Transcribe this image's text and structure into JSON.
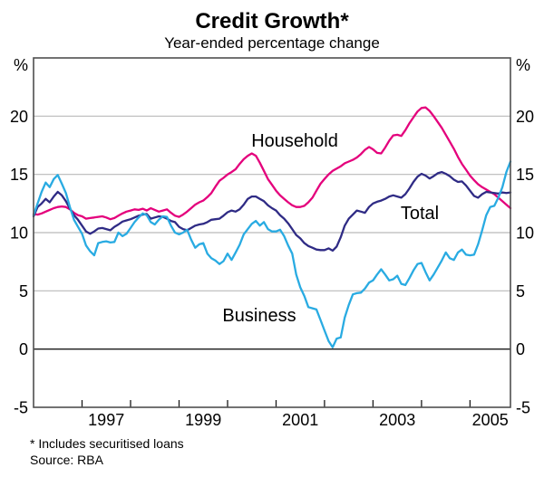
{
  "header": {
    "title": "Credit Growth*",
    "subtitle": "Year-ended percentage change"
  },
  "axes": {
    "unit_left": "%",
    "unit_right": "%"
  },
  "footnotes": {
    "note": "* Includes securitised loans",
    "source": "Source: RBA"
  },
  "chart_data": {
    "type": "line",
    "title": "Credit Growth*",
    "subtitle": "Year-ended percentage change",
    "ylabel": "%",
    "ylim": [
      -5,
      25
    ],
    "yticks": [
      20,
      15,
      10,
      5,
      0,
      -5
    ],
    "gridlines": [
      20,
      15,
      10,
      5
    ],
    "zero_line": 0,
    "grid": "horizontal-only",
    "legend_position": "inline-labels",
    "x_start": "1996-01",
    "x_end": "2005-11",
    "frequency": "monthly",
    "xticks_years": [
      1997,
      1998,
      1999,
      2000,
      2001,
      2002,
      2003,
      2004,
      2005
    ],
    "xtick_labels": [
      1997,
      1999,
      2001,
      2003,
      2005
    ],
    "series": [
      {
        "name": "Household",
        "color": "#e4007c",
        "values": [
          11.6,
          11.55,
          11.65,
          11.8,
          11.95,
          12.1,
          12.2,
          12.25,
          12.2,
          12.0,
          11.7,
          11.5,
          11.4,
          11.2,
          11.25,
          11.3,
          11.35,
          11.4,
          11.3,
          11.15,
          11.25,
          11.45,
          11.65,
          11.8,
          11.9,
          12.0,
          11.95,
          12.05,
          11.9,
          12.1,
          11.95,
          11.8,
          11.9,
          12.0,
          11.7,
          11.45,
          11.35,
          11.55,
          11.8,
          12.1,
          12.4,
          12.6,
          12.75,
          13.05,
          13.4,
          13.95,
          14.45,
          14.7,
          15.0,
          15.2,
          15.45,
          15.9,
          16.3,
          16.6,
          16.8,
          16.6,
          16.0,
          15.3,
          14.6,
          14.1,
          13.6,
          13.2,
          12.9,
          12.6,
          12.35,
          12.2,
          12.2,
          12.3,
          12.6,
          13.0,
          13.6,
          14.2,
          14.6,
          15.0,
          15.3,
          15.5,
          15.7,
          15.95,
          16.1,
          16.25,
          16.45,
          16.75,
          17.1,
          17.35,
          17.15,
          16.85,
          16.8,
          17.3,
          17.9,
          18.35,
          18.4,
          18.3,
          18.8,
          19.4,
          19.9,
          20.4,
          20.7,
          20.75,
          20.45,
          20.0,
          19.5,
          19.0,
          18.4,
          17.8,
          17.2,
          16.5,
          15.9,
          15.4,
          14.9,
          14.5,
          14.15,
          13.9,
          13.7,
          13.5,
          13.3,
          13.0,
          12.7,
          12.4,
          12.1
        ]
      },
      {
        "name": "Total",
        "color": "#2f2b85",
        "values": [
          11.4,
          12.2,
          12.5,
          12.9,
          12.6,
          13.1,
          13.5,
          13.2,
          12.7,
          12.05,
          11.5,
          11.1,
          10.6,
          10.1,
          9.9,
          10.1,
          10.35,
          10.4,
          10.3,
          10.2,
          10.5,
          10.7,
          10.95,
          11.05,
          11.15,
          11.3,
          11.45,
          11.55,
          11.6,
          11.2,
          11.3,
          11.4,
          11.35,
          11.2,
          11.0,
          10.9,
          10.5,
          10.3,
          10.2,
          10.4,
          10.6,
          10.7,
          10.75,
          10.9,
          11.1,
          11.15,
          11.2,
          11.45,
          11.75,
          11.9,
          11.8,
          12.0,
          12.4,
          12.9,
          13.1,
          13.1,
          12.9,
          12.7,
          12.35,
          12.1,
          11.9,
          11.5,
          11.2,
          10.8,
          10.3,
          9.8,
          9.5,
          9.1,
          8.85,
          8.7,
          8.55,
          8.5,
          8.5,
          8.65,
          8.45,
          8.8,
          9.6,
          10.6,
          11.2,
          11.55,
          11.9,
          11.8,
          11.7,
          12.2,
          12.5,
          12.65,
          12.75,
          12.9,
          13.1,
          13.2,
          13.1,
          13.0,
          13.3,
          13.8,
          14.35,
          14.8,
          15.05,
          14.9,
          14.65,
          14.85,
          15.1,
          15.2,
          15.05,
          14.85,
          14.55,
          14.35,
          14.4,
          14.05,
          13.6,
          13.15,
          13.0,
          13.3,
          13.5,
          13.45,
          13.4,
          13.35,
          13.45,
          13.4,
          13.45
        ]
      },
      {
        "name": "Business",
        "color": "#29abe2",
        "values": [
          11.5,
          12.5,
          13.5,
          14.3,
          13.9,
          14.6,
          14.95,
          14.2,
          13.4,
          12.2,
          11.1,
          10.5,
          9.9,
          8.9,
          8.4,
          8.05,
          9.1,
          9.2,
          9.25,
          9.15,
          9.2,
          10.0,
          9.7,
          9.9,
          10.4,
          10.9,
          11.3,
          11.65,
          11.5,
          10.9,
          10.7,
          11.1,
          11.4,
          11.35,
          10.6,
          10.0,
          9.85,
          10.0,
          10.25,
          9.4,
          8.7,
          9.0,
          9.1,
          8.2,
          7.8,
          7.6,
          7.3,
          7.55,
          8.2,
          7.65,
          8.3,
          8.95,
          9.85,
          10.3,
          10.75,
          11.0,
          10.6,
          10.9,
          10.3,
          10.1,
          10.1,
          10.25,
          9.7,
          8.9,
          8.2,
          6.4,
          5.3,
          4.55,
          3.6,
          3.5,
          3.4,
          2.5,
          1.6,
          0.7,
          0.15,
          0.9,
          1.0,
          2.7,
          3.8,
          4.7,
          4.8,
          4.85,
          5.2,
          5.7,
          5.9,
          6.4,
          6.85,
          6.4,
          5.9,
          6.0,
          6.3,
          5.6,
          5.5,
          6.1,
          6.75,
          7.3,
          7.4,
          6.6,
          5.9,
          6.4,
          7.0,
          7.6,
          8.3,
          7.8,
          7.65,
          8.3,
          8.55,
          8.1,
          8.05,
          8.1,
          9.0,
          10.2,
          11.5,
          12.2,
          12.3,
          13.0,
          13.9,
          15.2,
          16.1
        ]
      }
    ]
  }
}
